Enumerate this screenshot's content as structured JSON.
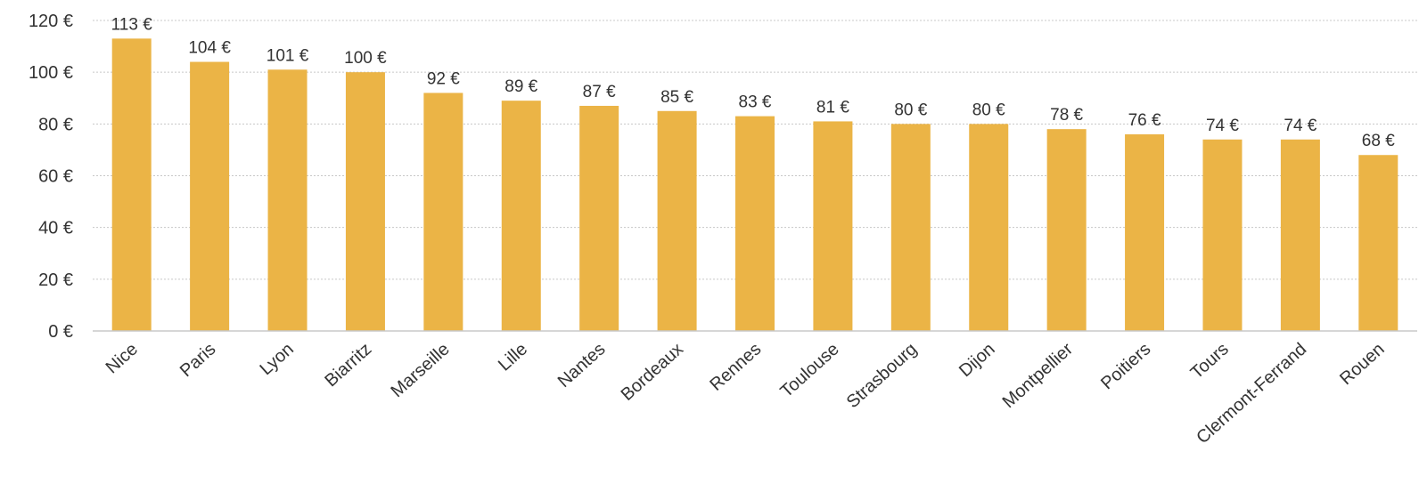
{
  "chart_data": {
    "type": "bar",
    "categories": [
      "Nice",
      "Paris",
      "Lyon",
      "Biarritz",
      "Marseille",
      "Lille",
      "Nantes",
      "Bordeaux",
      "Rennes",
      "Toulouse",
      "Strasbourg",
      "Dijon",
      "Montpellier",
      "Poitiers",
      "Tours",
      "Clermont-Ferrand",
      "Rouen"
    ],
    "values": [
      113,
      104,
      101,
      100,
      92,
      89,
      87,
      85,
      83,
      81,
      80,
      80,
      78,
      76,
      74,
      74,
      68
    ],
    "data_labels": [
      "113 €",
      "104 €",
      "101 €",
      "100 €",
      "92 €",
      "89 €",
      "87 €",
      "85 €",
      "83 €",
      "81 €",
      "80 €",
      "80 €",
      "78 €",
      "76 €",
      "74 €",
      "74 €",
      "68 €"
    ],
    "yticks": [
      0,
      20,
      40,
      60,
      80,
      100,
      120
    ],
    "ytick_labels": [
      "0 €",
      "20 €",
      "40 €",
      "60 €",
      "80 €",
      "100 €",
      "120 €"
    ],
    "ylim": [
      0,
      120
    ],
    "grid": true,
    "bar_color": "#EBB446",
    "title": "",
    "xlabel": "",
    "ylabel": ""
  }
}
